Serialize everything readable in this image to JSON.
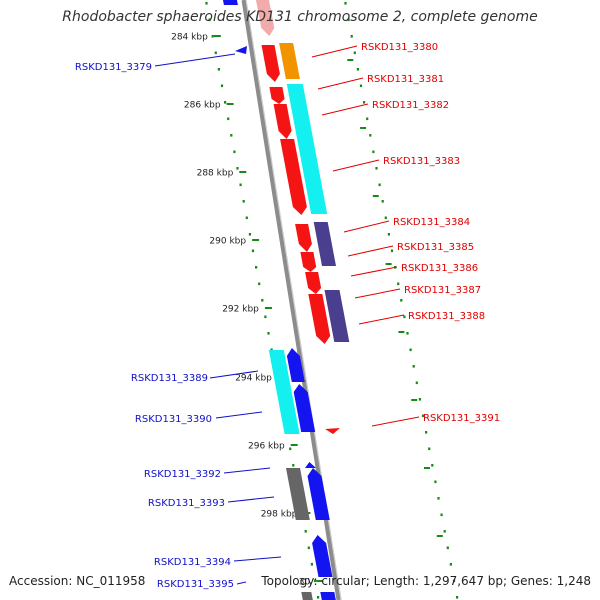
{
  "title": "Rhodobacter sphaeroides KD131 chromosome 2, complete genome",
  "accession": "Accession: NC_011958",
  "topology": "Topology: circular; Length: 1,297,647 bp; Genes: 1,248",
  "colors": {
    "backbone": "#8c8c8c",
    "dots": "#178a17",
    "red": "#f51414",
    "orange": "#f29400",
    "cyan": "#14f0f0",
    "purple": "#4a3f8e",
    "blue": "#1414f0",
    "grey": "#666666",
    "pink": "#f2aaaa",
    "label_red": "#e00000",
    "label_blue": "#1010c8"
  },
  "ticks": [
    {
      "label": "284 kbp"
    },
    {
      "label": "286 kbp"
    },
    {
      "label": "288 kbp"
    },
    {
      "label": "290 kbp"
    },
    {
      "label": "292 kbp"
    },
    {
      "label": "294 kbp"
    },
    {
      "label": "296 kbp"
    },
    {
      "label": "298 kbp"
    },
    {
      "label": "30"
    }
  ],
  "genes": [
    {
      "id": "RSKD131_3379",
      "strand": "-"
    },
    {
      "id": "RSKD131_3380",
      "strand": "+"
    },
    {
      "id": "RSKD131_3381",
      "strand": "+"
    },
    {
      "id": "RSKD131_3382",
      "strand": "+"
    },
    {
      "id": "RSKD131_3383",
      "strand": "+"
    },
    {
      "id": "RSKD131_3384",
      "strand": "+"
    },
    {
      "id": "RSKD131_3385",
      "strand": "+"
    },
    {
      "id": "RSKD131_3386",
      "strand": "+"
    },
    {
      "id": "RSKD131_3387",
      "strand": "+"
    },
    {
      "id": "RSKD131_3388",
      "strand": "+"
    },
    {
      "id": "RSKD131_3389",
      "strand": "-"
    },
    {
      "id": "RSKD131_3390",
      "strand": "-"
    },
    {
      "id": "RSKD131_3391",
      "strand": "+"
    },
    {
      "id": "RSKD131_3392",
      "strand": "-"
    },
    {
      "id": "RSKD131_3393",
      "strand": "-"
    },
    {
      "id": "RSKD131_3394",
      "strand": "-"
    },
    {
      "id": "RSKD131_3395",
      "strand": "-"
    }
  ]
}
